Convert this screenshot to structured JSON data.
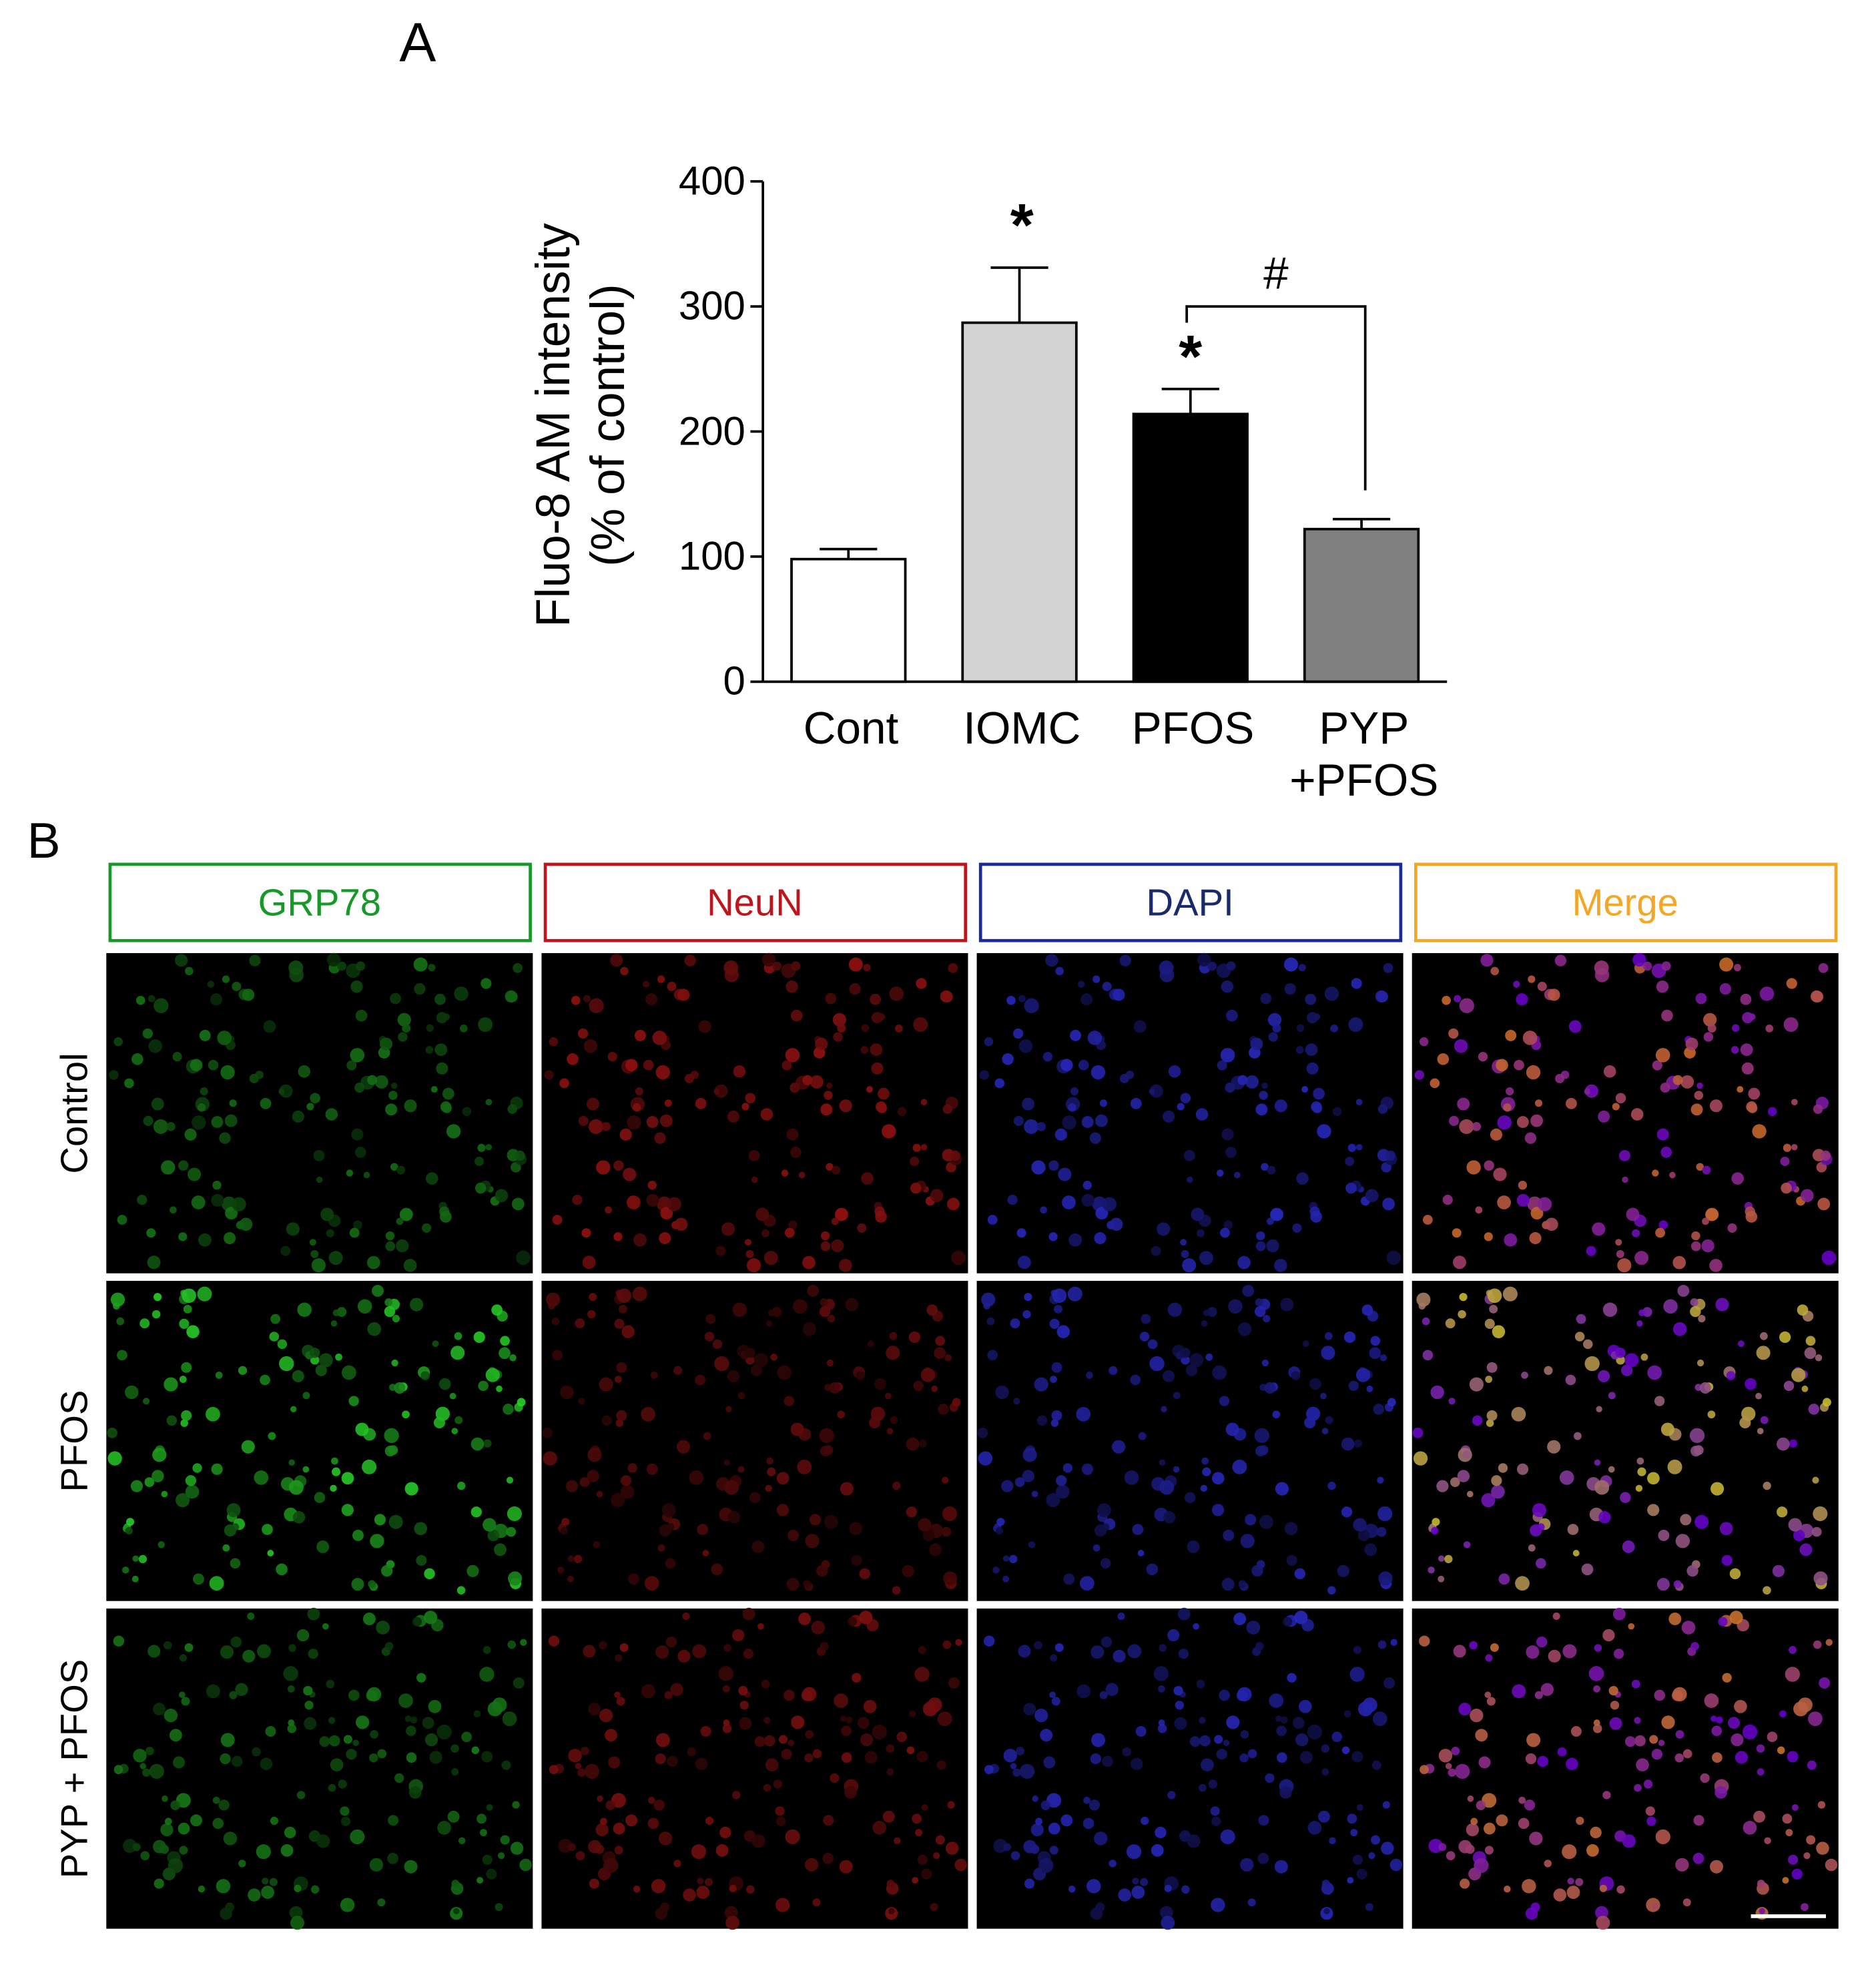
{
  "chart_data": {
    "type": "bar",
    "panel_label": "A",
    "ylabel": "Fluo-8 AM intensity\n(% of control)",
    "categories": [
      "Cont",
      "IOMC",
      "PFOS",
      "PYP\n+PFOS"
    ],
    "values": [
      98,
      287,
      214,
      122
    ],
    "errors": [
      8,
      44,
      20,
      8
    ],
    "colors": [
      "#ffffff",
      "#d3d3d3",
      "#000000",
      "#808080"
    ],
    "annotations": [
      "*",
      "*",
      "#"
    ],
    "ylim": [
      0,
      400
    ],
    "yticks": [
      0,
      100,
      200,
      300,
      400
    ],
    "grid": false
  },
  "figure": {
    "panel_label": "B",
    "columns": [
      "GRP78",
      "NeuN",
      "DAPI",
      "Merge"
    ],
    "rows": [
      "Control",
      "PFOS",
      "PYP + PFOS"
    ]
  }
}
